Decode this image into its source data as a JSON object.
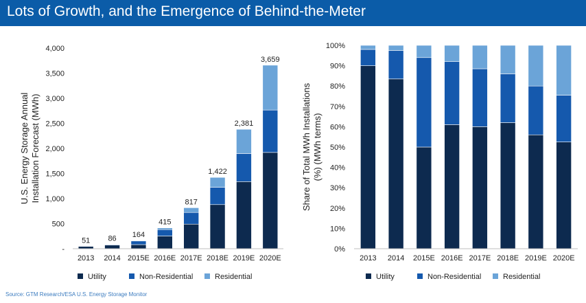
{
  "header": {
    "title": "Lots of Growth, and the Emergence of Behind-the-Meter"
  },
  "source": "Source: GTM Research/ESA U.S. Energy Storage Monitor",
  "colors": {
    "Utility": "#0d2a4f",
    "Non-Residential": "#1559ad",
    "Residential": "#6ba4d8",
    "header": "#0b5ca8"
  },
  "chart_data": [
    {
      "type": "bar",
      "stacked": true,
      "categories": [
        "2013",
        "2014",
        "2015E",
        "2016E",
        "2017E",
        "2018E",
        "2019E",
        "2020E"
      ],
      "series": [
        {
          "name": "Utility",
          "values": [
            47,
            72,
            82,
            253,
            490,
            880,
            1338,
            1920
          ]
        },
        {
          "name": "Non-Residential",
          "values": [
            4,
            12,
            72,
            128,
            233,
            345,
            560,
            845
          ]
        },
        {
          "name": "Residential",
          "values": [
            0,
            2,
            10,
            34,
            94,
            197,
            483,
            894
          ]
        }
      ],
      "totals": [
        51,
        86,
        164,
        415,
        817,
        1422,
        2381,
        3659
      ],
      "total_labels": [
        "51",
        "86",
        "164",
        "415",
        "817",
        "1,422",
        "2,381",
        "3,659"
      ],
      "ylabel": "U.S. Energy Storage Annual Installation Forecast (MWh)",
      "ylim": [
        0,
        4000
      ],
      "yticks": [
        0,
        500,
        1000,
        1500,
        2000,
        2500,
        3000,
        3500,
        4000
      ],
      "ytick_labels": [
        "-",
        "500",
        "1,000",
        "1,500",
        "2,000",
        "2,500",
        "3,000",
        "3,500",
        "4,000"
      ],
      "legend_position": "bottom",
      "grid": false
    },
    {
      "type": "bar",
      "stacked": true,
      "percent": true,
      "categories": [
        "2013",
        "2014",
        "2015E",
        "2016E",
        "2017E",
        "2018E",
        "2019E",
        "2020E"
      ],
      "series": [
        {
          "name": "Utility",
          "values": [
            90,
            83.5,
            50,
            61,
            60,
            62,
            56,
            52.5
          ]
        },
        {
          "name": "Non-Residential",
          "values": [
            8,
            14,
            44,
            31,
            28.5,
            24,
            24,
            23
          ]
        },
        {
          "name": "Residential",
          "values": [
            2,
            2.5,
            6,
            8,
            11.5,
            14,
            20,
            24.5
          ]
        }
      ],
      "ylabel": "Share of Total MWh Installations (%) (MWh terms)",
      "ylim": [
        0,
        100
      ],
      "yticks": [
        0,
        10,
        20,
        30,
        40,
        50,
        60,
        70,
        80,
        90,
        100
      ],
      "ytick_labels": [
        "0%",
        "10%",
        "20%",
        "30%",
        "40%",
        "50%",
        "60%",
        "70%",
        "80%",
        "90%",
        "100%"
      ],
      "legend_position": "bottom",
      "grid": false
    }
  ]
}
